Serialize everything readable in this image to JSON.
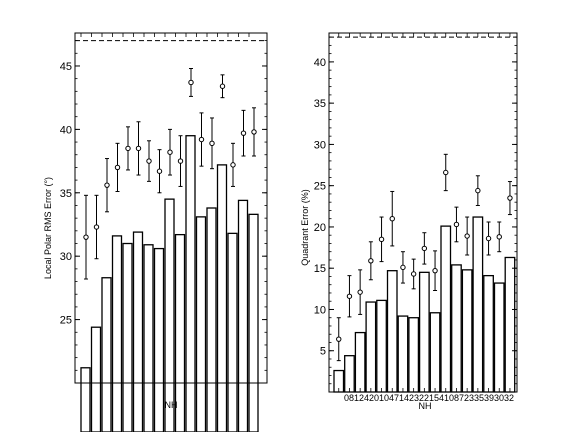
{
  "chart_data": [
    {
      "type": "bar",
      "chart_label": "left",
      "xlabel": "NH",
      "ylabel": "Local Polar RMS Error (°)",
      "ylim": [
        20,
        47.6
      ],
      "yticks": [
        25,
        30,
        35,
        40,
        45
      ],
      "reference_line": 47,
      "grid": false,
      "legend": "none",
      "bar_values": [
        21.2,
        24.4,
        28.3,
        31.6,
        31.0,
        31.9,
        30.9,
        30.6,
        34.5,
        31.7,
        39.5,
        33.1,
        33.8,
        37.2,
        31.8,
        34.4,
        33.3
      ],
      "marker_values": [
        31.5,
        32.3,
        35.6,
        37.0,
        38.5,
        38.5,
        37.5,
        36.7,
        38.2,
        37.5,
        43.7,
        39.2,
        38.9,
        43.4,
        37.2,
        39.7,
        39.8
      ],
      "error_bars": [
        3.3,
        2.5,
        2.1,
        1.9,
        1.7,
        2.1,
        1.6,
        1.7,
        1.8,
        2.0,
        1.1,
        2.1,
        2.0,
        0.9,
        1.7,
        1.8,
        1.9
      ]
    },
    {
      "type": "bar",
      "chart_label": "right",
      "xlabel": "NH",
      "ylabel": "Quadrant Error (%)",
      "ylim": [
        0,
        43.5
      ],
      "yticks": [
        5,
        10,
        15,
        20,
        25,
        30,
        35,
        40
      ],
      "reference_line": 43,
      "grid": false,
      "legend": "none",
      "categories_text": "0812420104714232215410872335393032",
      "bar_values": [
        2.6,
        4.4,
        7.2,
        10.9,
        11.1,
        14.7,
        9.2,
        9.0,
        14.5,
        9.6,
        20.1,
        15.4,
        14.8,
        21.2,
        14.1,
        13.2,
        16.3
      ],
      "marker_values": [
        6.4,
        11.6,
        12.1,
        15.9,
        18.5,
        21.0,
        15.1,
        14.3,
        17.4,
        14.7,
        26.6,
        20.3,
        18.9,
        24.4,
        18.6,
        18.8,
        23.5
      ],
      "error_bars": [
        2.6,
        2.5,
        2.7,
        2.3,
        2.7,
        3.3,
        1.9,
        1.8,
        1.9,
        2.4,
        2.2,
        2.1,
        2.3,
        1.8,
        2.0,
        1.8,
        2.0
      ]
    }
  ]
}
